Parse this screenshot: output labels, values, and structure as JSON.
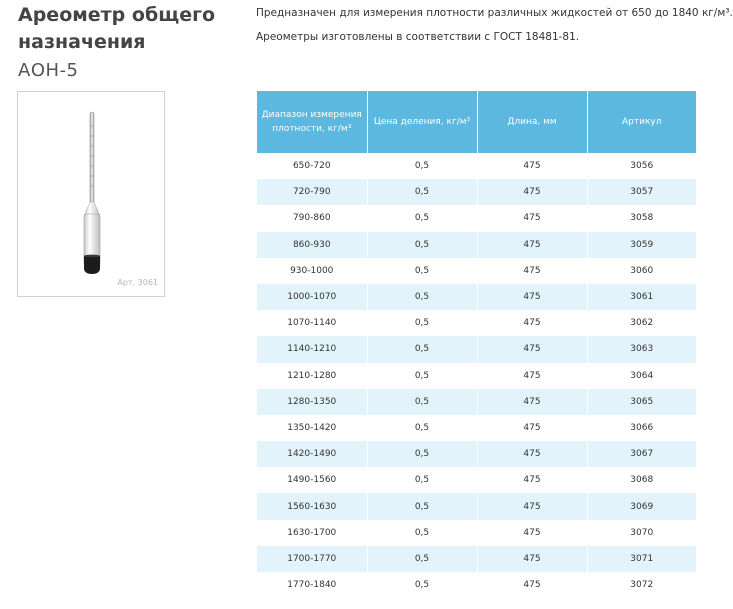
{
  "product": {
    "title": "Ареометр общего назначения",
    "model": "АОН-5",
    "image_caption": "Арт. 3061"
  },
  "description": {
    "line1": "Предназначен для измерения плотности различных жидкостей от 650 до 1840 кг/м³.",
    "line2": "Ареометры изготовлены в соответствии с ГОСТ 18481-81."
  },
  "table": {
    "headers": [
      "Диапазон измерения плотности, кг/м³",
      "Цена деления, кг/м³",
      "Длина, мм",
      "Артикул"
    ],
    "rows": [
      [
        "650-720",
        "0,5",
        "475",
        "3056"
      ],
      [
        "720-790",
        "0,5",
        "475",
        "3057"
      ],
      [
        "790-860",
        "0,5",
        "475",
        "3058"
      ],
      [
        "860-930",
        "0,5",
        "475",
        "3059"
      ],
      [
        "930-1000",
        "0,5",
        "475",
        "3060"
      ],
      [
        "1000-1070",
        "0,5",
        "475",
        "3061"
      ],
      [
        "1070-1140",
        "0,5",
        "475",
        "3062"
      ],
      [
        "1140-1210",
        "0,5",
        "475",
        "3063"
      ],
      [
        "1210-1280",
        "0,5",
        "475",
        "3064"
      ],
      [
        "1280-1350",
        "0,5",
        "475",
        "3065"
      ],
      [
        "1350-1420",
        "0,5",
        "475",
        "3066"
      ],
      [
        "1420-1490",
        "0,5",
        "475",
        "3067"
      ],
      [
        "1490-1560",
        "0,5",
        "475",
        "3068"
      ],
      [
        "1560-1630",
        "0,5",
        "475",
        "3069"
      ],
      [
        "1630-1700",
        "0,5",
        "475",
        "3070"
      ],
      [
        "1700-1770",
        "0,5",
        "475",
        "3071"
      ],
      [
        "1770-1840",
        "0,5",
        "475",
        "3072"
      ]
    ]
  },
  "colors": {
    "header_bg": "#5cb8df",
    "row_alt_bg": "#e3f3fb",
    "row_base_bg": "#ffffff"
  }
}
